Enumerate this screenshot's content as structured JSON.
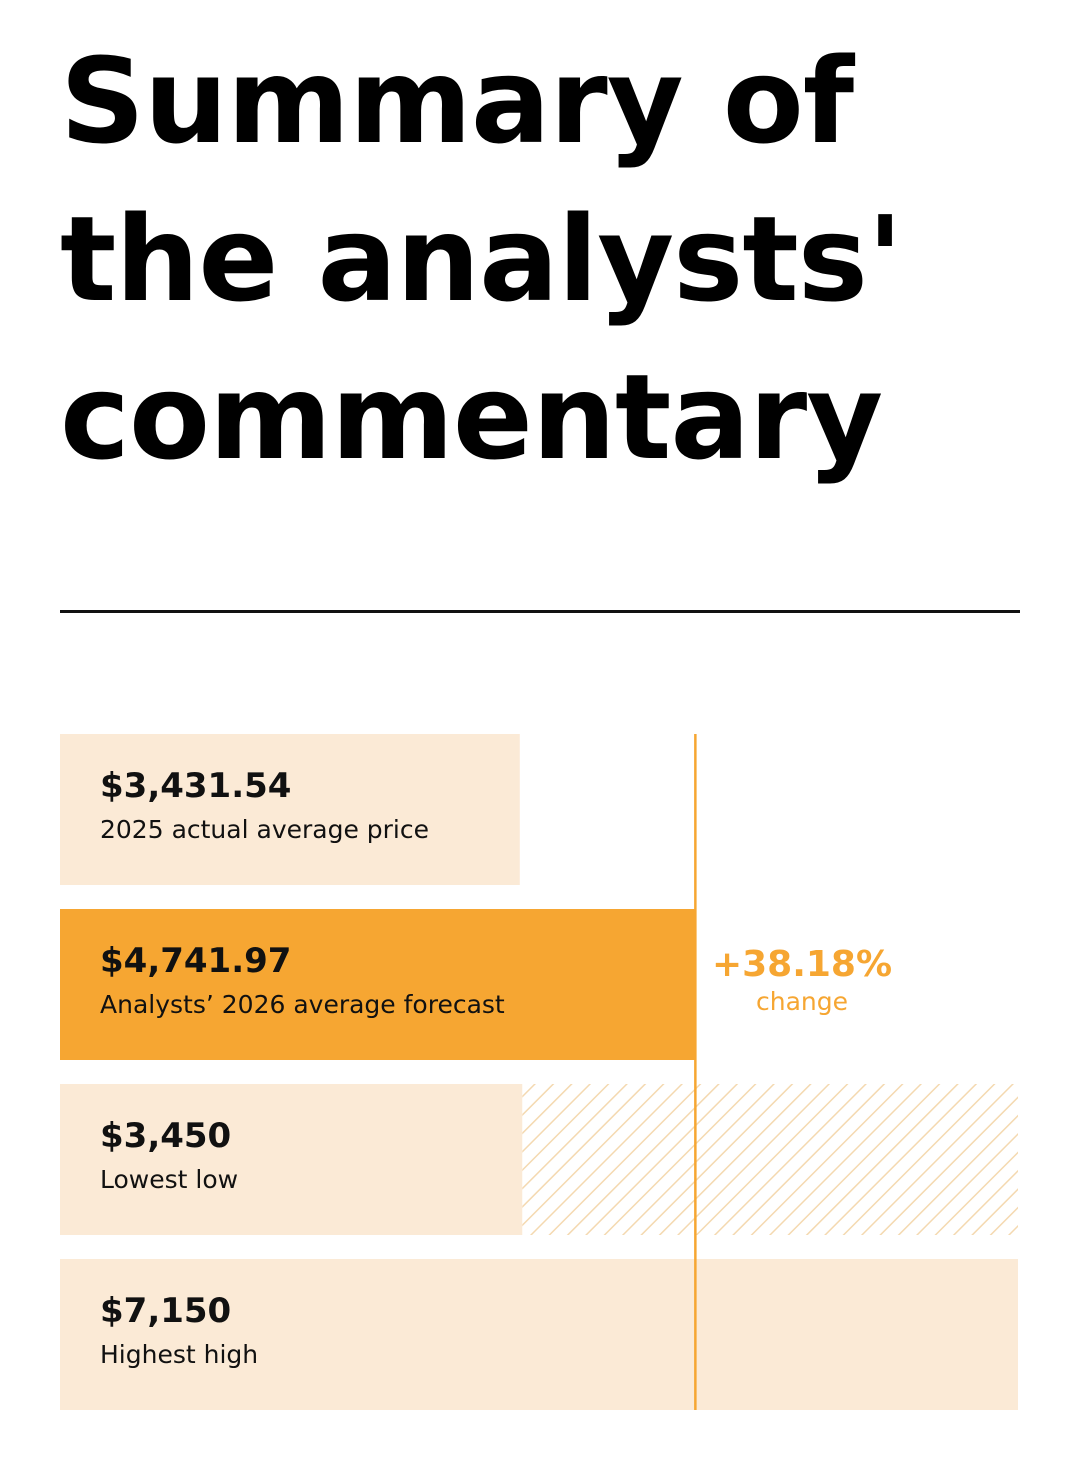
{
  "page": {
    "title": "Summary of the analysts' commentary"
  },
  "colors": {
    "light": "#fbead6",
    "accent": "#f6a632",
    "text": "#111111",
    "hatch": "#f4d9b0"
  },
  "chart_data": {
    "type": "bar",
    "orientation": "horizontal",
    "xlim": [
      0,
      7150
    ],
    "categories": [
      "2025 actual average price",
      "Analysts’ 2026 average forecast",
      "Lowest low",
      "Highest high"
    ],
    "values": [
      3431.54,
      4741.97,
      3450,
      7150
    ],
    "value_labels": [
      "$3,431.54",
      "$4,741.97",
      "$3,450",
      "$7,150"
    ],
    "highlight_index": 1,
    "range": {
      "low": 3450,
      "high": 7150,
      "style": "hatched"
    },
    "reference_line": {
      "value": 4741.97
    },
    "annotation": {
      "value": "+38.18%",
      "label": "change"
    }
  }
}
